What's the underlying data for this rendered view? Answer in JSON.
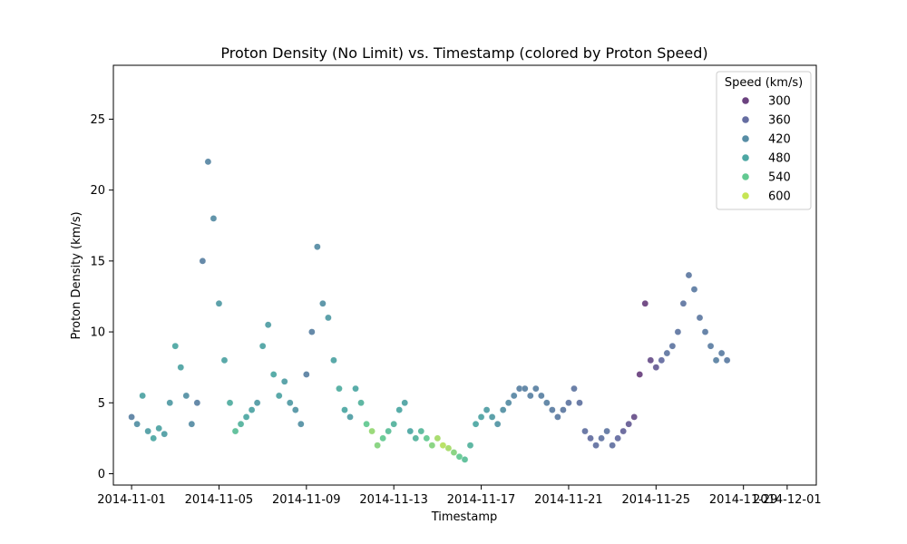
{
  "chart_data": {
    "type": "scatter",
    "title": "Proton Density (No Limit) vs. Timestamp (colored by Proton Speed)",
    "xlabel": "Timestamp",
    "ylabel": "Proton Density (km/s)",
    "x_type": "date",
    "xlim": [
      "2014-10-31T04:00",
      "2014-12-02T08:00"
    ],
    "ylim": [
      -0.8,
      28.8
    ],
    "x_ticks": [
      "2014-11-01",
      "2014-11-05",
      "2014-11-09",
      "2014-11-13",
      "2014-11-17",
      "2014-11-21",
      "2014-11-25",
      "2014-11-29",
      "2014-12-01"
    ],
    "y_ticks": [
      0,
      5,
      10,
      15,
      20,
      25
    ],
    "grid": false,
    "legend": {
      "title": "Speed (km/s)",
      "placement": "top-right",
      "entries": [
        {
          "label": "300",
          "color": "#46135f"
        },
        {
          "label": "360",
          "color": "#3f4889"
        },
        {
          "label": "420",
          "color": "#2d708e"
        },
        {
          "label": "480",
          "color": "#21918c"
        },
        {
          "label": "540",
          "color": "#3bbb75"
        },
        {
          "label": "600",
          "color": "#b8de29"
        }
      ]
    },
    "series_samples": {
      "columns": [
        "date",
        "density",
        "speed_km_s"
      ],
      "points": [
        [
          "2014-11-01T00:00",
          4.0,
          400
        ],
        [
          "2014-11-01T06:00",
          3.5,
          430
        ],
        [
          "2014-11-01T12:00",
          5.5,
          470
        ],
        [
          "2014-11-01T18:00",
          3.0,
          460
        ],
        [
          "2014-11-02T00:00",
          2.5,
          480
        ],
        [
          "2014-11-02T06:00",
          3.2,
          470
        ],
        [
          "2014-11-02T12:00",
          2.8,
          460
        ],
        [
          "2014-11-02T18:00",
          5.0,
          450
        ],
        [
          "2014-11-03T00:00",
          9.0,
          480
        ],
        [
          "2014-11-03T06:00",
          7.5,
          470
        ],
        [
          "2014-11-03T12:00",
          5.5,
          430
        ],
        [
          "2014-11-03T18:00",
          3.5,
          420
        ],
        [
          "2014-11-04T00:00",
          5.0,
          400
        ],
        [
          "2014-11-04T06:00",
          15.0,
          400
        ],
        [
          "2014-11-04T12:00",
          22.0,
          410
        ],
        [
          "2014-11-04T18:00",
          18.0,
          420
        ],
        [
          "2014-11-05T00:00",
          12.0,
          450
        ],
        [
          "2014-11-05T06:00",
          8.0,
          470
        ],
        [
          "2014-11-05T12:00",
          5.0,
          490
        ],
        [
          "2014-11-05T18:00",
          3.0,
          520
        ],
        [
          "2014-11-06T00:00",
          3.5,
          500
        ],
        [
          "2014-11-06T06:00",
          4.0,
          480
        ],
        [
          "2014-11-06T12:00",
          4.5,
          470
        ],
        [
          "2014-11-06T18:00",
          5.0,
          450
        ],
        [
          "2014-11-07T00:00",
          9.0,
          470
        ],
        [
          "2014-11-07T06:00",
          10.5,
          460
        ],
        [
          "2014-11-07T12:00",
          7.0,
          480
        ],
        [
          "2014-11-07T18:00",
          5.5,
          470
        ],
        [
          "2014-11-08T00:00",
          6.5,
          460
        ],
        [
          "2014-11-08T06:00",
          5.0,
          450
        ],
        [
          "2014-11-08T12:00",
          4.5,
          440
        ],
        [
          "2014-11-08T18:00",
          3.5,
          430
        ],
        [
          "2014-11-09T00:00",
          7.0,
          400
        ],
        [
          "2014-11-09T06:00",
          10.0,
          400
        ],
        [
          "2014-11-09T12:00",
          16.0,
          420
        ],
        [
          "2014-11-09T18:00",
          12.0,
          430
        ],
        [
          "2014-11-10T00:00",
          11.0,
          450
        ],
        [
          "2014-11-10T06:00",
          8.0,
          470
        ],
        [
          "2014-11-10T12:00",
          6.0,
          490
        ],
        [
          "2014-11-10T18:00",
          4.5,
          480
        ],
        [
          "2014-11-11T00:00",
          4.0,
          460
        ],
        [
          "2014-11-11T06:00",
          6.0,
          480
        ],
        [
          "2014-11-11T12:00",
          5.0,
          500
        ],
        [
          "2014-11-11T18:00",
          3.5,
          540
        ],
        [
          "2014-11-12T00:00",
          3.0,
          570
        ],
        [
          "2014-11-12T06:00",
          2.0,
          560
        ],
        [
          "2014-11-12T12:00",
          2.5,
          540
        ],
        [
          "2014-11-12T18:00",
          3.0,
          520
        ],
        [
          "2014-11-13T00:00",
          3.5,
          500
        ],
        [
          "2014-11-13T06:00",
          4.5,
          480
        ],
        [
          "2014-11-13T12:00",
          5.0,
          470
        ],
        [
          "2014-11-13T18:00",
          3.0,
          480
        ],
        [
          "2014-11-14T00:00",
          2.5,
          500
        ],
        [
          "2014-11-14T06:00",
          3.0,
          510
        ],
        [
          "2014-11-14T12:00",
          2.5,
          540
        ],
        [
          "2014-11-14T18:00",
          2.0,
          560
        ],
        [
          "2014-11-15T00:00",
          2.5,
          580
        ],
        [
          "2014-11-15T06:00",
          2.0,
          590
        ],
        [
          "2014-11-15T12:00",
          1.8,
          580
        ],
        [
          "2014-11-15T18:00",
          1.5,
          560
        ],
        [
          "2014-11-16T00:00",
          1.2,
          540
        ],
        [
          "2014-11-16T06:00",
          1.0,
          520
        ],
        [
          "2014-11-16T12:00",
          2.0,
          500
        ],
        [
          "2014-11-16T18:00",
          3.5,
          480
        ],
        [
          "2014-11-17T00:00",
          4.0,
          470
        ],
        [
          "2014-11-17T06:00",
          4.5,
          460
        ],
        [
          "2014-11-17T12:00",
          4.0,
          450
        ],
        [
          "2014-11-17T18:00",
          3.5,
          440
        ],
        [
          "2014-11-18T00:00",
          4.5,
          430
        ],
        [
          "2014-11-18T06:00",
          5.0,
          420
        ],
        [
          "2014-11-18T12:00",
          5.5,
          410
        ],
        [
          "2014-11-18T18:00",
          6.0,
          400
        ],
        [
          "2014-11-19T00:00",
          6.0,
          400
        ],
        [
          "2014-11-19T06:00",
          5.5,
          400
        ],
        [
          "2014-11-19T12:00",
          6.0,
          400
        ],
        [
          "2014-11-19T18:00",
          5.5,
          400
        ],
        [
          "2014-11-20T00:00",
          5.0,
          400
        ],
        [
          "2014-11-20T06:00",
          4.5,
          395
        ],
        [
          "2014-11-20T12:00",
          4.0,
          390
        ],
        [
          "2014-11-20T18:00",
          4.5,
          385
        ],
        [
          "2014-11-21T00:00",
          5.0,
          380
        ],
        [
          "2014-11-21T06:00",
          6.0,
          380
        ],
        [
          "2014-11-21T12:00",
          5.0,
          375
        ],
        [
          "2014-11-21T18:00",
          3.0,
          370
        ],
        [
          "2014-11-22T00:00",
          2.5,
          365
        ],
        [
          "2014-11-22T06:00",
          2.0,
          370
        ],
        [
          "2014-11-22T12:00",
          2.5,
          375
        ],
        [
          "2014-11-22T18:00",
          3.0,
          380
        ],
        [
          "2014-11-23T00:00",
          2.0,
          370
        ],
        [
          "2014-11-23T06:00",
          2.5,
          360
        ],
        [
          "2014-11-23T12:00",
          3.0,
          350
        ],
        [
          "2014-11-23T18:00",
          3.5,
          340
        ],
        [
          "2014-11-24T00:00",
          4.0,
          320
        ],
        [
          "2014-11-24T06:00",
          7.0,
          300
        ],
        [
          "2014-11-24T12:00",
          12.0,
          300
        ],
        [
          "2014-11-24T18:00",
          8.0,
          320
        ],
        [
          "2014-11-25T00:00",
          7.5,
          340
        ],
        [
          "2014-11-25T06:00",
          8.0,
          360
        ],
        [
          "2014-11-25T12:00",
          8.5,
          380
        ],
        [
          "2014-11-25T18:00",
          9.0,
          380
        ],
        [
          "2014-11-26T00:00",
          10.0,
          380
        ],
        [
          "2014-11-26T06:00",
          12.0,
          380
        ],
        [
          "2014-11-26T12:00",
          14.0,
          385
        ],
        [
          "2014-11-26T18:00",
          13.0,
          390
        ],
        [
          "2014-11-27T00:00",
          11.0,
          385
        ],
        [
          "2014-11-27T06:00",
          10.0,
          390
        ],
        [
          "2014-11-27T12:00",
          9.0,
          395
        ],
        [
          "2014-11-27T18:00",
          8.0,
          400
        ],
        [
          "2014-11-28T00:00",
          8.5,
          395
        ],
        [
          "2014-11-28T06:00",
          8.0,
          390
        ]
      ]
    }
  }
}
